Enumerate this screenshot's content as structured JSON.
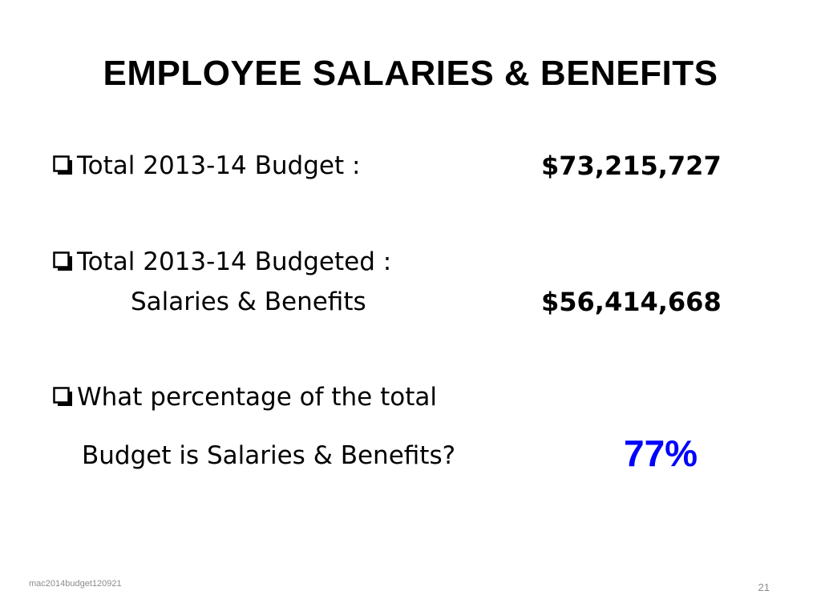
{
  "slide": {
    "title": "EMPLOYEE SALARIES & BENEFITS",
    "items": [
      {
        "label": "Total 2013-14 Budget :",
        "amount": "$73,215,727"
      },
      {
        "label": "Total 2013-14 Budgeted :",
        "sublabel": "Salaries & Benefits",
        "amount": "$56,414,668"
      },
      {
        "label": "What percentage of the total",
        "sublabel": "Budget is Salaries & Benefits?",
        "amount": "77%"
      }
    ],
    "footer_text": "mac2014budget120921",
    "page_number": "21"
  },
  "colors": {
    "text": "#000000",
    "highlight": "#0000ff",
    "footer": "#8c8c8c"
  },
  "icons": {
    "bullet": "checkbox-square-icon"
  }
}
